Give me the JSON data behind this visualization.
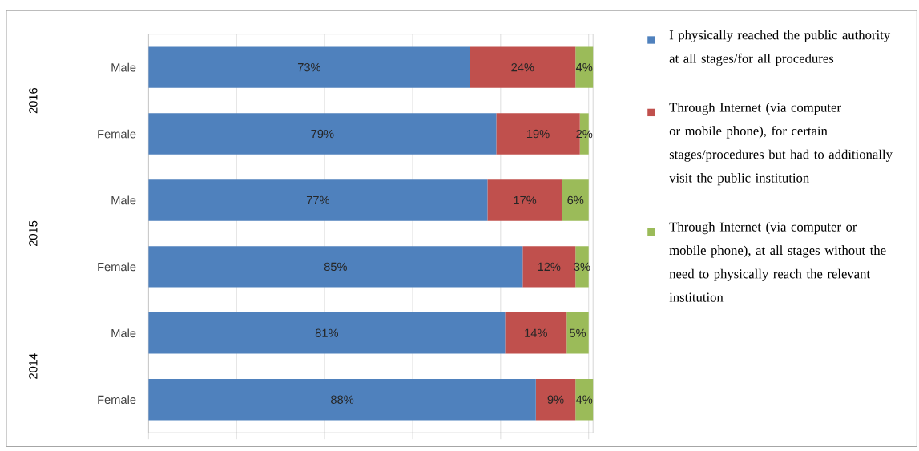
{
  "chart_data": {
    "type": "bar",
    "orientation": "horizontal",
    "stacked": true,
    "categories": [
      "Male",
      "Female",
      "Male",
      "Female",
      "Male",
      "Female"
    ],
    "annotations": [
      "2016",
      "2015",
      "2014"
    ],
    "series": [
      {
        "name": "I physically reached the public authority at all stages/for all procedures",
        "color": "#4f81bd",
        "values": [
          73,
          79,
          77,
          85,
          81,
          88
        ],
        "value_labels": [
          "73%",
          "79%",
          "77%",
          "85%",
          "81%",
          "88%"
        ]
      },
      {
        "name": "Through Internet (via computer or mobile phone), for certain stages/procedures but had to additionally visit the public institution",
        "color": "#c0504d",
        "values": [
          24,
          19,
          17,
          12,
          14,
          9
        ],
        "value_labels": [
          "24%",
          "19%",
          "17%",
          "12%",
          "14%",
          "9%"
        ]
      },
      {
        "name": "Through Internet (via computer or mobile phone), at all stages without the need to physically reach the relevant institution",
        "color": "#9bbb59",
        "values": [
          4,
          2,
          6,
          3,
          5,
          4
        ],
        "value_labels": [
          "4%",
          "2%",
          "6%",
          "3%",
          "5%",
          "4%"
        ]
      }
    ],
    "xlim": [
      0,
      101
    ],
    "xticks": [
      {
        "value": 0,
        "label": null
      },
      {
        "value": 20,
        "label": null
      },
      {
        "value": 40,
        "label": null
      },
      {
        "value": 60,
        "label": null
      },
      {
        "value": 80,
        "label": null
      },
      {
        "value": 100,
        "label": null
      }
    ],
    "grid": "x",
    "tick_labels": "y",
    "legend": "right"
  }
}
